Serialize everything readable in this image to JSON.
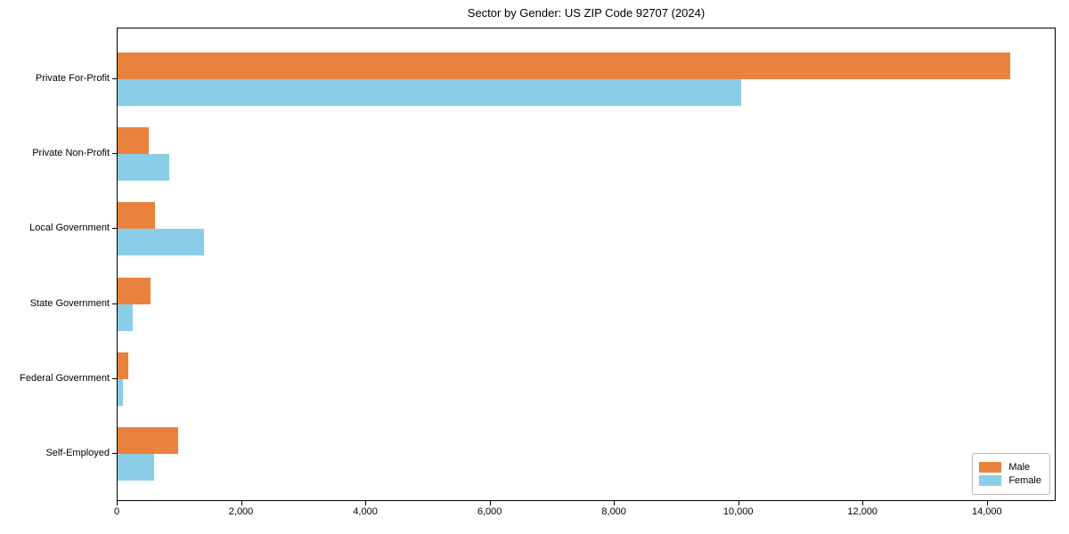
{
  "chart_data": {
    "type": "bar",
    "orientation": "horizontal",
    "title": "Sector by Gender: US ZIP Code 92707 (2024)",
    "xlabel": "",
    "ylabel": "",
    "categories": [
      "Private For-Profit",
      "Private Non-Profit",
      "Local Government",
      "State Government",
      "Federal Government",
      "Self-Employed"
    ],
    "series": [
      {
        "name": "Male",
        "color": "#E8823D",
        "values": [
          14360,
          500,
          605,
          525,
          175,
          970
        ]
      },
      {
        "name": "Female",
        "color": "#8BCDE8",
        "values": [
          10030,
          830,
          1390,
          250,
          80,
          590
        ]
      }
    ],
    "xlim": [
      0,
      15078
    ],
    "x_ticks": [
      0,
      2000,
      4000,
      6000,
      8000,
      10000,
      12000,
      14000
    ],
    "x_tick_labels": [
      "0",
      "2,000",
      "4,000",
      "6,000",
      "8,000",
      "10,000",
      "12,000",
      "14,000"
    ],
    "grid": false,
    "legend_position": "lower right",
    "plot_border_color": "#000000",
    "background_color": "#ffffff"
  }
}
